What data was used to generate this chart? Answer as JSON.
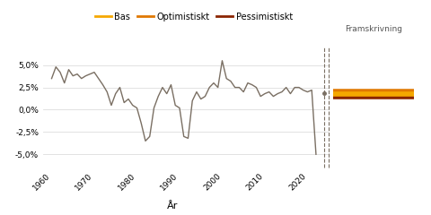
{
  "xlabel": "År",
  "background_color": "#ffffff",
  "grid_color": "#dddddd",
  "historical_color": "#7a6f63",
  "bas_color": "#f5a800",
  "optimistiskt_color": "#e07800",
  "pessimistiskt_color": "#8b2500",
  "legend_labels": [
    "Bas",
    "Optimistiskt",
    "Pessimistiskt"
  ],
  "framskrivning_label": "Framskrivning",
  "divider_color": "#7a6f63",
  "bas_y": 1.8,
  "optimistiskt_y": 2.1,
  "pessimistiskt_y": 1.5,
  "ylim": [
    -6.5,
    7.0
  ],
  "yticks": [
    -5.0,
    -2.5,
    0.0,
    2.5,
    5.0
  ],
  "ytick_labels": [
    "-5,0%",
    "-2,5%",
    "0,0%",
    "2,5%",
    "5,0%"
  ],
  "xlim_hist": [
    1958,
    2025
  ],
  "xticks": [
    1960,
    1970,
    1980,
    1990,
    2000,
    2010,
    2020
  ],
  "historical_data": {
    "years": [
      1960,
      1961,
      1962,
      1963,
      1964,
      1965,
      1966,
      1967,
      1968,
      1969,
      1970,
      1971,
      1972,
      1973,
      1974,
      1975,
      1976,
      1977,
      1978,
      1979,
      1980,
      1981,
      1982,
      1983,
      1984,
      1985,
      1986,
      1987,
      1988,
      1989,
      1990,
      1991,
      1992,
      1993,
      1994,
      1995,
      1996,
      1997,
      1998,
      1999,
      2000,
      2001,
      2002,
      2003,
      2004,
      2005,
      2006,
      2007,
      2008,
      2009,
      2010,
      2011,
      2012,
      2013,
      2014,
      2015,
      2016,
      2017,
      2018,
      2019,
      2020,
      2021,
      2022
    ],
    "values": [
      3.5,
      4.8,
      4.2,
      3.0,
      4.5,
      3.8,
      4.0,
      3.5,
      3.8,
      4.0,
      4.2,
      3.5,
      2.8,
      2.0,
      0.5,
      1.8,
      2.5,
      0.8,
      1.2,
      0.5,
      0.2,
      -1.5,
      -3.5,
      -3.0,
      0.2,
      1.5,
      2.5,
      1.8,
      2.8,
      0.5,
      0.2,
      -3.0,
      -3.2,
      1.0,
      2.0,
      1.2,
      1.5,
      2.5,
      3.0,
      2.5,
      5.5,
      3.5,
      3.2,
      2.5,
      2.5,
      2.0,
      3.0,
      2.8,
      2.5,
      1.5,
      1.8,
      2.0,
      1.5,
      1.8,
      2.0,
      2.5,
      1.8,
      2.5,
      2.5,
      2.2,
      2.0,
      2.2,
      -5.0
    ]
  }
}
